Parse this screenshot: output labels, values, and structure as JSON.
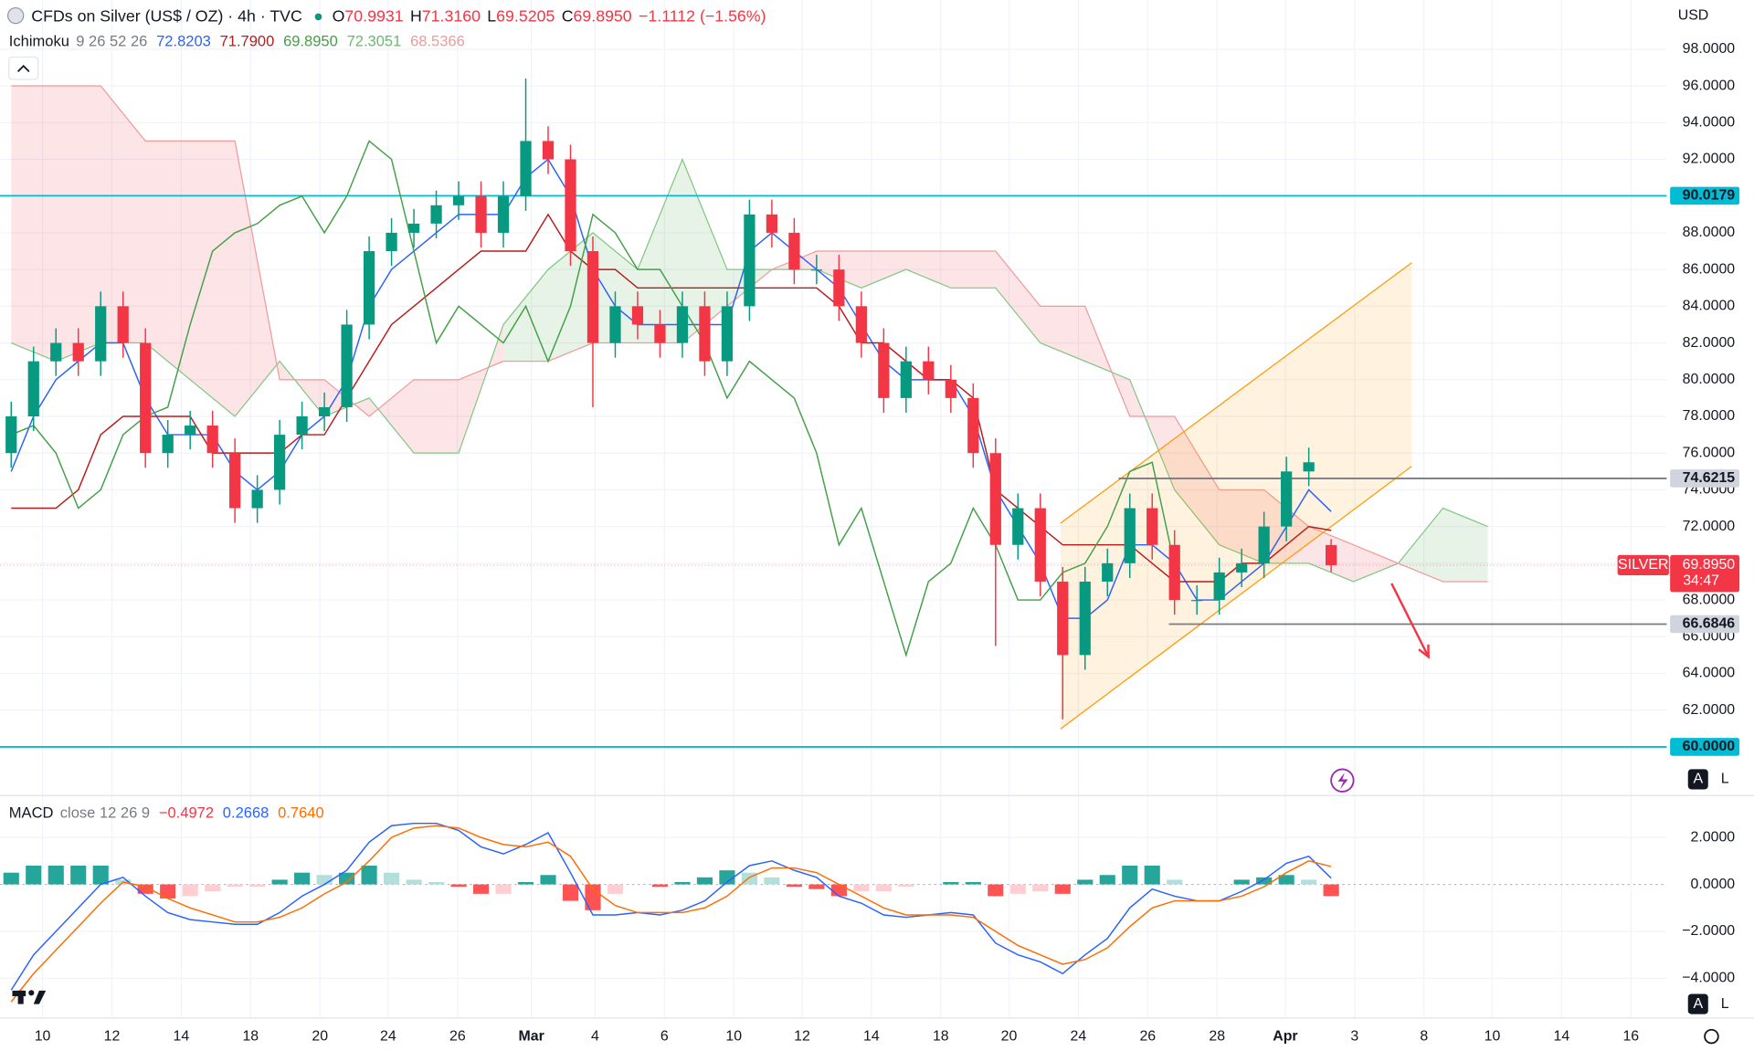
{
  "chart_data": [
    {
      "type": "candlestick",
      "title": "CFDs on Silver (US$ / OZ) · 4h · TVC",
      "ohlc": [
        {
          "label": "O",
          "value": "70.9931"
        },
        {
          "label": "H",
          "value": "71.3160"
        },
        {
          "label": "L",
          "value": "69.5205"
        },
        {
          "label": "C",
          "value": "69.8950"
        }
      ],
      "change": "−1.1112 (−1.56%)",
      "indicator": "Ichimoku",
      "indicator_params": "9 26 52 26",
      "currency": "USD",
      "symbol_tag": "SILVER",
      "last_price": {
        "value": 69.895,
        "label": "69.8950"
      },
      "countdown": "34:47",
      "last_color": "#f23645",
      "open": [
        76,
        78,
        81,
        82,
        81,
        84,
        82,
        76,
        77,
        77.5,
        76,
        73,
        74,
        77,
        78,
        78.5,
        83,
        87,
        88,
        88.5,
        89.5,
        90,
        88,
        90,
        93,
        92,
        87,
        82,
        84,
        83,
        82,
        84,
        81,
        84,
        89,
        88,
        86,
        86,
        84,
        82,
        79,
        81,
        80,
        79,
        76,
        71,
        73,
        69,
        65,
        69,
        70,
        73,
        71,
        68,
        68,
        69.5,
        70,
        72,
        75,
        70.9931
      ],
      "high": [
        78.8,
        81.8,
        82.8,
        82.8,
        84.8,
        84.8,
        82.8,
        77.8,
        78.3,
        78.3,
        76.8,
        74.8,
        77.8,
        78.8,
        79.3,
        83.8,
        87.8,
        88.8,
        89.3,
        90.3,
        90.8,
        90.8,
        90.8,
        96.4,
        93.8,
        92.8,
        87.8,
        84.8,
        84.8,
        83.8,
        84.8,
        84.8,
        84.8,
        89.8,
        89.8,
        88.8,
        86.8,
        86.8,
        84.8,
        82.8,
        81.8,
        81.8,
        80.8,
        79.8,
        76.8,
        73.8,
        73.8,
        69.8,
        69.8,
        70.8,
        73.8,
        73.8,
        71.8,
        68.8,
        70.3,
        70.8,
        72.8,
        75.8,
        76.3,
        71.316
      ],
      "low": [
        75.2,
        77.2,
        80.2,
        80.2,
        80.2,
        81.2,
        75.2,
        75.2,
        76.2,
        75.2,
        72.2,
        72.2,
        73.2,
        76.2,
        77.2,
        77.7,
        82.2,
        86.2,
        87.2,
        87.7,
        88.7,
        87.2,
        87.2,
        89.2,
        91.2,
        86.2,
        78.5,
        81.2,
        82.2,
        81.2,
        81.2,
        80.2,
        80.2,
        83.2,
        87.2,
        85.2,
        85.2,
        83.2,
        81.2,
        78.2,
        78.2,
        79.2,
        78.2,
        75.2,
        65.5,
        70.2,
        68.2,
        61.5,
        64.2,
        68.2,
        69.2,
        70.2,
        67.2,
        67.2,
        67.2,
        68.7,
        69.2,
        71.2,
        74.2,
        69.5205
      ],
      "close": [
        78,
        81,
        82,
        81,
        84,
        82,
        76,
        77,
        77.5,
        76,
        73,
        74,
        77,
        78,
        78.5,
        83,
        87,
        88,
        88.5,
        89.5,
        90,
        88,
        90,
        93,
        92,
        87,
        82,
        84,
        83,
        82,
        84,
        81,
        84,
        89,
        88,
        86,
        86,
        84,
        82,
        79,
        81,
        80,
        79,
        76,
        71,
        73,
        69,
        65,
        69,
        70,
        73,
        71,
        68,
        68,
        69.5,
        70,
        72,
        75,
        75.5,
        69.895
      ],
      "up_color": "#089981",
      "down_color": "#f23645",
      "series": [
        {
          "legend": "72.8203",
          "color": "#2962ff",
          "values": [
            75,
            78,
            80,
            81,
            82,
            82,
            79,
            77,
            77,
            77,
            75,
            74,
            75,
            77,
            78,
            80,
            84,
            86,
            87,
            88,
            89,
            89,
            89,
            91,
            92,
            90,
            86,
            84,
            83,
            83,
            83,
            83,
            83,
            87,
            88,
            87,
            86,
            85,
            83,
            81,
            80,
            80,
            80,
            78,
            74,
            72,
            70,
            67,
            67,
            68,
            71,
            71,
            70,
            68,
            68,
            69,
            70,
            72,
            74,
            72.82
          ]
        },
        {
          "legend": "71.7900",
          "color": "#b71c1c",
          "values": [
            73,
            73,
            73,
            74,
            77,
            78,
            78,
            78,
            78,
            76,
            76,
            76,
            76,
            77,
            77,
            79,
            81,
            83,
            84,
            85,
            86,
            87,
            87,
            87,
            89,
            87,
            86,
            86,
            85,
            85,
            85,
            85,
            85,
            85,
            85,
            85,
            85,
            84,
            82,
            82,
            81,
            80,
            80,
            79,
            74,
            73,
            72,
            71,
            71,
            71,
            71,
            70,
            69,
            69,
            69,
            70,
            70,
            71,
            72,
            71.79
          ]
        },
        {
          "legend": "69.8950",
          "color": "#43a047",
          "values": [
            77,
            77.5,
            76,
            73,
            74,
            77,
            78,
            78.5,
            83,
            87,
            88,
            88.5,
            89.5,
            90,
            88,
            90,
            93,
            92,
            87,
            82,
            84,
            83,
            82,
            84,
            81,
            84,
            89,
            88,
            86,
            86,
            84,
            82,
            79,
            81,
            80,
            79,
            76,
            71,
            73,
            69,
            65,
            69,
            70,
            73,
            71,
            68,
            68,
            69.5,
            70,
            72,
            75,
            75.5,
            69.895
          ]
        }
      ],
      "cloud": {
        "x": [
          0,
          2,
          4,
          6,
          8,
          10,
          12,
          14,
          16,
          18,
          20,
          22,
          24,
          26,
          28,
          30,
          32,
          34,
          36,
          38,
          40,
          42,
          44,
          46,
          48,
          50,
          52,
          54,
          56,
          58,
          60,
          62,
          64,
          66
        ],
        "span_a": {
          "legend": "72.3051",
          "color": "#81c784",
          "values": [
            82,
            81,
            82,
            82,
            80,
            78,
            81,
            78,
            79,
            76,
            76,
            83,
            86,
            88,
            86,
            92,
            86,
            86,
            86,
            85,
            86,
            85,
            85,
            82,
            81,
            80,
            74,
            71,
            70,
            70,
            69,
            70,
            73,
            72
          ]
        },
        "span_b": {
          "legend": "68.5366",
          "color": "#ef9a9a",
          "values": [
            96,
            96,
            96,
            93,
            93,
            93,
            80,
            80,
            78,
            80,
            80,
            81,
            81,
            82,
            82,
            82,
            84,
            86,
            87,
            87,
            87,
            87,
            87,
            84,
            84,
            78,
            78,
            74,
            74,
            72,
            71,
            70,
            69,
            69
          ]
        },
        "up_fill": "#43a047",
        "down_fill": "#f23645"
      },
      "levels": [
        {
          "price": 90.0179,
          "color": "#00bcd4",
          "tag_color": "#00bcd4"
        },
        {
          "price": {
            "value": 60,
            "label": "60.0000"
          },
          "color": "#00bcd4",
          "tag_color": "#00bcd4"
        },
        {
          "price": 74.6215,
          "color": "#787b86",
          "tag_color": "#d1d4dc",
          "from": 49.5
        },
        {
          "price": 66.6846,
          "color": "#787b86",
          "tag_color": "#d1d4dc",
          "from": 51.75
        }
      ],
      "channel": {
        "x": [
          46.9,
          62.6
        ],
        "lower": [
          60.97,
          75.28
        ],
        "upper": [
          72.18,
          86.37
        ],
        "color": "#ff9800"
      },
      "arrow": {
        "x": [
          61.7,
          63.35
        ],
        "y": [
          68.9,
          64.9
        ],
        "color": "#f23645"
      },
      "xlim": [
        -0.5,
        74
      ],
      "ylim": [
        57.44,
        100.68
      ],
      "xticks": [
        {
          "value": 1.4,
          "label": "10"
        },
        {
          "value": 4.5,
          "label": "12"
        },
        {
          "value": 7.6,
          "label": "14"
        },
        {
          "value": 10.7,
          "label": "18"
        },
        {
          "value": 13.8,
          "label": "20"
        },
        {
          "value": 16.85,
          "label": "24"
        },
        {
          "value": 19.95,
          "label": "26"
        },
        {
          "value": 23.25,
          "label": "Mar"
        },
        {
          "value": 26.1,
          "label": "4"
        },
        {
          "value": 29.2,
          "label": "6"
        },
        {
          "value": 32.3,
          "label": "10"
        },
        {
          "value": 35.35,
          "label": "12"
        },
        {
          "value": 38.45,
          "label": "14"
        },
        {
          "value": 41.55,
          "label": "18"
        },
        {
          "value": 44.6,
          "label": "20"
        },
        {
          "value": 47.7,
          "label": "24"
        },
        {
          "value": 50.8,
          "label": "26"
        },
        {
          "value": 53.9,
          "label": "28"
        },
        {
          "value": 56.95,
          "label": "Apr"
        },
        {
          "value": 60.05,
          "label": "3"
        },
        {
          "value": 63.15,
          "label": "8"
        },
        {
          "value": 66.2,
          "label": "10"
        },
        {
          "value": 69.3,
          "label": "14"
        },
        {
          "value": 72.4,
          "label": "16"
        }
      ],
      "yticks": [
        {
          "value": 62,
          "label": "62.0000"
        },
        {
          "value": 64,
          "label": "64.0000"
        },
        {
          "value": 66,
          "label": "66.0000"
        },
        {
          "value": 68,
          "label": "68.0000"
        },
        {
          "value": 70,
          "label": "70.0000"
        },
        {
          "value": 72,
          "label": "72.0000"
        },
        {
          "value": 74,
          "label": "74.0000"
        },
        {
          "value": 76,
          "label": "76.0000"
        },
        {
          "value": 78,
          "label": "78.0000"
        },
        {
          "value": 80,
          "label": "80.0000"
        },
        {
          "value": 82,
          "label": "82.0000"
        },
        {
          "value": 84,
          "label": "84.0000"
        },
        {
          "value": 86,
          "label": "86.0000"
        },
        {
          "value": 88,
          "label": "88.0000"
        },
        {
          "value": 90,
          "label": "90.0000"
        },
        {
          "value": 92,
          "label": "92.0000"
        },
        {
          "value": 94,
          "label": "94.0000"
        },
        {
          "value": 96,
          "label": "96.0000"
        },
        {
          "value": 98,
          "label": "98.0000"
        }
      ],
      "scale_buttons": [
        "A",
        "L"
      ]
    },
    {
      "type": "macd",
      "title": "MACD",
      "params": "close 12 26 9",
      "histogram": {
        "legend": "−0.4972",
        "colors": [
          "#26a69a",
          "#b2dfdb",
          "#ffcdd2",
          "#ff5252"
        ],
        "values": [
          0.5,
          0.8,
          0.8,
          0.8,
          0.8,
          0.2,
          -0.4,
          -0.6,
          -0.5,
          -0.3,
          -0.1,
          -0.1,
          0.2,
          0.5,
          0.4,
          0.5,
          0.8,
          0.5,
          0.2,
          0.1,
          -0.1,
          -0.4,
          -0.4,
          0.1,
          0.4,
          -0.7,
          -1.1,
          -0.4,
          0,
          -0.1,
          0.1,
          0.3,
          0.6,
          0.5,
          0.3,
          -0.1,
          -0.2,
          -0.5,
          -0.3,
          -0.3,
          -0.1,
          0,
          0.1,
          0.1,
          -0.5,
          -0.4,
          -0.3,
          -0.4,
          0.2,
          0.4,
          0.8,
          0.8,
          0.2,
          0,
          0,
          0.2,
          0.3,
          0.4,
          0.2,
          -0.4972
        ]
      },
      "series": [
        {
          "legend": "0.2668",
          "color": "#2962ff",
          "values": [
            -4.5,
            -3.0,
            -2.0,
            -1.0,
            0.0,
            0.3,
            -0.5,
            -1.2,
            -1.5,
            -1.6,
            -1.7,
            -1.7,
            -1.2,
            -0.5,
            0.0,
            0.6,
            1.8,
            2.5,
            2.6,
            2.6,
            2.3,
            1.6,
            1.3,
            1.7,
            2.2,
            0.5,
            -1.3,
            -1.3,
            -1.2,
            -1.3,
            -1.1,
            -0.7,
            0.1,
            0.8,
            1.0,
            0.6,
            0.3,
            -0.5,
            -0.8,
            -1.3,
            -1.4,
            -1.3,
            -1.2,
            -1.3,
            -2.5,
            -3.0,
            -3.3,
            -3.8,
            -3.0,
            -2.3,
            -1.0,
            -0.2,
            -0.5,
            -0.7,
            -0.7,
            -0.3,
            0.2,
            0.9,
            1.2,
            0.2668
          ]
        },
        {
          "legend": "0.7640",
          "color": "#ff6d00",
          "values": [
            -5,
            -3.8,
            -2.8,
            -1.8,
            -0.8,
            0.1,
            -0.1,
            -0.6,
            -1.0,
            -1.3,
            -1.6,
            -1.6,
            -1.4,
            -1.0,
            -0.4,
            0.1,
            1.0,
            2.0,
            2.4,
            2.5,
            2.4,
            2.0,
            1.7,
            1.6,
            1.8,
            1.2,
            -0.2,
            -0.9,
            -1.2,
            -1.2,
            -1.2,
            -1.0,
            -0.5,
            0.3,
            0.7,
            0.7,
            0.5,
            0.0,
            -0.5,
            -1.0,
            -1.3,
            -1.3,
            -1.3,
            -1.4,
            -2.0,
            -2.6,
            -3.0,
            -3.4,
            -3.2,
            -2.7,
            -1.8,
            -1.0,
            -0.7,
            -0.7,
            -0.7,
            -0.5,
            -0.1,
            0.5,
            1.0,
            0.764
          ]
        }
      ],
      "ylim": [
        -5.43,
        3.62
      ],
      "yticks": [
        {
          "value": 2,
          "label": "2.0000"
        },
        {
          "value": 0,
          "label": "0.0000"
        },
        {
          "value": -2,
          "label": "−2.0000"
        },
        {
          "value": -4,
          "label": "−4.0000"
        }
      ],
      "scale_buttons": [
        "A",
        "L"
      ]
    }
  ]
}
